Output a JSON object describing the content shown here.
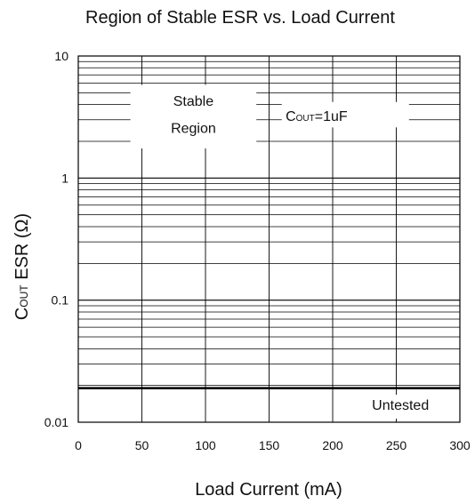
{
  "chart_data": {
    "type": "line",
    "title": "Region of Stable ESR vs. Load Current",
    "xlabel": "Load Current (mA)",
    "ylabel": "Cₒᵤₜ ESR (Ω)",
    "ylabel_parts": {
      "main": "C",
      "sub": "OUT",
      "rest": " ESR (Ω)"
    },
    "x_scale": "linear",
    "y_scale": "log",
    "xlim": [
      0,
      300
    ],
    "ylim": [
      0.01,
      10
    ],
    "x_ticks": [
      "0",
      "50",
      "100",
      "150",
      "200",
      "250",
      "300"
    ],
    "y_ticks": [
      "0.01",
      "0.1",
      "1",
      "10"
    ],
    "grid": true,
    "series": [
      {
        "x": [
          0,
          300
        ],
        "y": [
          0.019,
          0.019
        ]
      }
    ],
    "annotations": {
      "stable": [
        "Stable",
        "Region"
      ],
      "cout": {
        "main": "C",
        "sub": "OUT",
        "rest": "=1uF"
      },
      "untested": "Untested"
    }
  }
}
